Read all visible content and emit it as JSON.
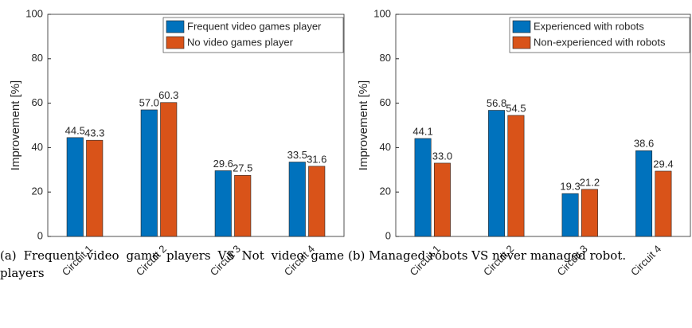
{
  "chart_data": [
    {
      "type": "bar",
      "caption": "(a) Frequent video game players VS Not video game players",
      "ylabel": "Improvement [%]",
      "categories": [
        "Circuit 1",
        "Circuit 2",
        "Circuit 3",
        "Circuit 4"
      ],
      "series": [
        {
          "name": "Frequent video games player",
          "color": "#0072bd",
          "values": [
            44.5,
            57.0,
            29.6,
            33.5
          ],
          "value_labels": [
            "44.5",
            "57.0",
            "29.6",
            "33.5"
          ]
        },
        {
          "name": "No video games player",
          "color": "#d95319",
          "values": [
            43.3,
            60.3,
            27.5,
            31.6
          ],
          "value_labels": [
            "43.3",
            "60.3",
            "27.5",
            "31.6"
          ]
        }
      ],
      "ylim": [
        0,
        100
      ],
      "yticks": [
        0,
        20,
        40,
        60,
        80,
        100
      ],
      "legend": "upper right"
    },
    {
      "type": "bar",
      "caption": "(b) Managed robots VS never managed robot.",
      "ylabel": "Improvement [%]",
      "categories": [
        "Circuit 1",
        "Circuit 2",
        "Circuit 3",
        "Circuit 4"
      ],
      "series": [
        {
          "name": "Experienced with robots",
          "color": "#0072bd",
          "values": [
            44.1,
            56.8,
            19.3,
            38.6
          ],
          "value_labels": [
            "44.1",
            "56.8",
            "19.3",
            "38.6"
          ]
        },
        {
          "name": "Non-experienced with robots",
          "color": "#d95319",
          "values": [
            33.0,
            54.5,
            21.2,
            29.4
          ],
          "value_labels": [
            "33.0",
            "54.5",
            "21.2",
            "29.4"
          ]
        }
      ],
      "ylim": [
        0,
        100
      ],
      "yticks": [
        0,
        20,
        40,
        60,
        80,
        100
      ],
      "legend": "upper right"
    }
  ]
}
